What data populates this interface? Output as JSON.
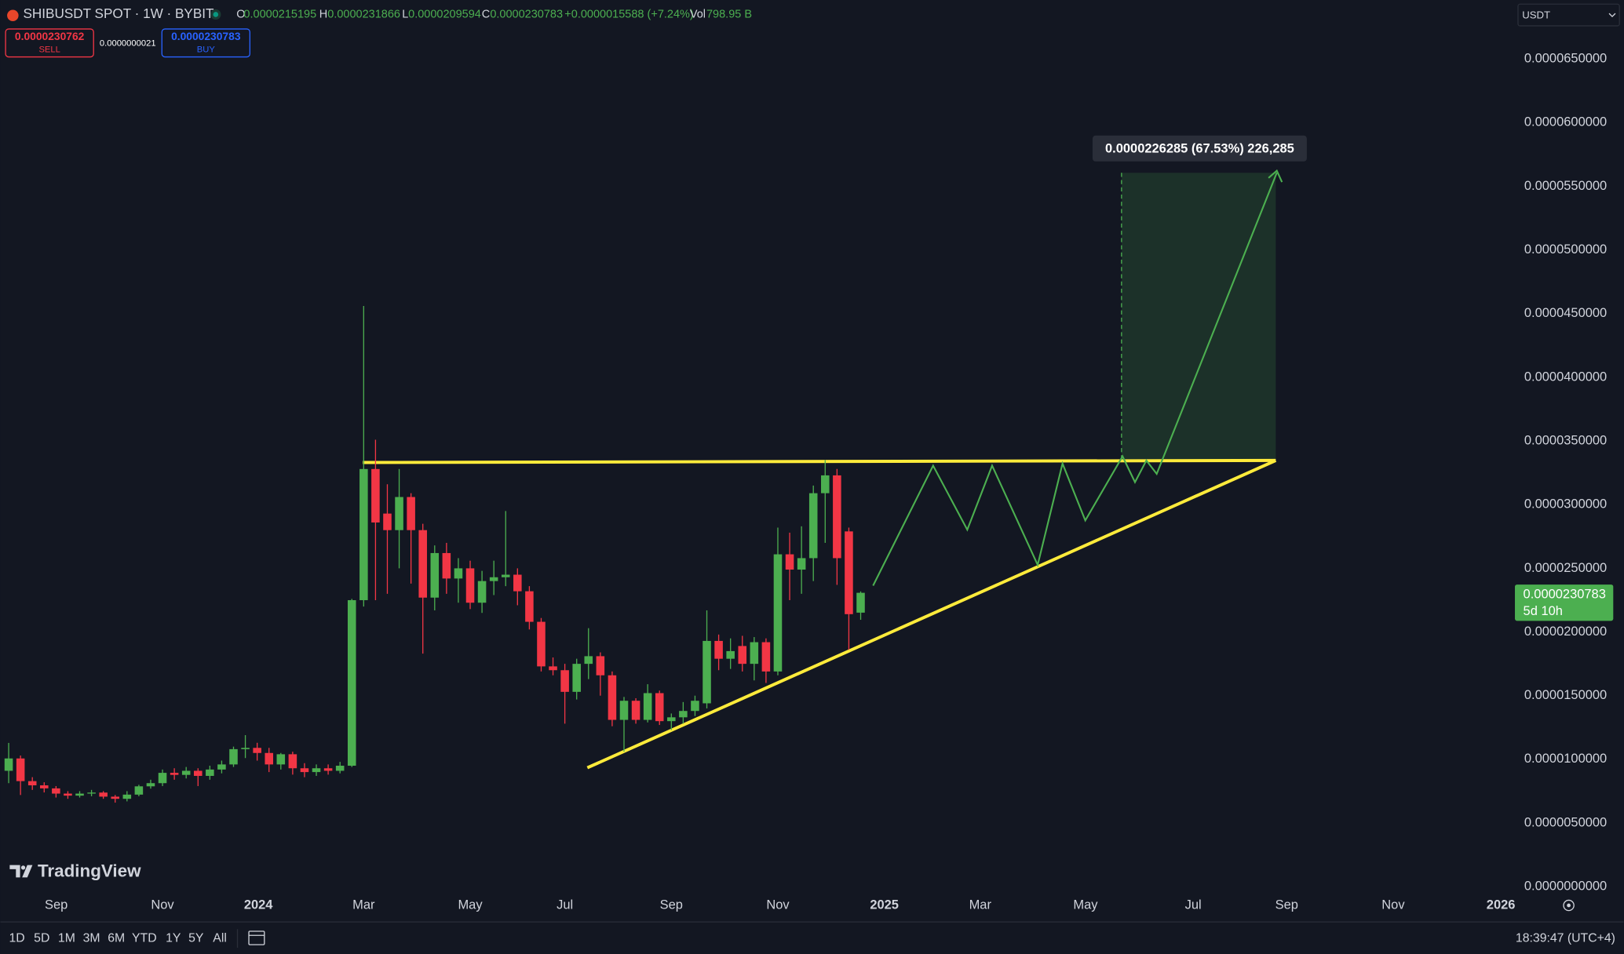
{
  "header": {
    "symbol": "SHIBUSDT SPOT · 1W · BYBIT",
    "o_label": "O",
    "open": "0.0000215195",
    "h_label": "H",
    "high": "0.0000231866",
    "l_label": "L",
    "low": "0.0000209594",
    "c_label": "C",
    "close": "0.0000230783",
    "change": "+0.0000015588 (+7.24%)",
    "vol_label": "Vol",
    "volume": "798.95 B"
  },
  "trade": {
    "sell_price": "0.0000230762",
    "sell": "SELL",
    "spread": "0.0000000021",
    "buy_price": "0.0000230783",
    "buy": "BUY"
  },
  "currency": "USDT",
  "chart_data": {
    "type": "candlestick",
    "categories": [
      null,
      null,
      null,
      null,
      null,
      null,
      null,
      null,
      null,
      null,
      null,
      null,
      null,
      null,
      null,
      null,
      null,
      null,
      null,
      null,
      null,
      null,
      null,
      null,
      null,
      null,
      null,
      null,
      null,
      null,
      null,
      null,
      null,
      null,
      null,
      null,
      null,
      null,
      null,
      null,
      null,
      null,
      null,
      null,
      null,
      null,
      null,
      null,
      null,
      null,
      null,
      null,
      null,
      null,
      null,
      null,
      null,
      null,
      null,
      null,
      null,
      null,
      null,
      null,
      null,
      null,
      null,
      null,
      null,
      null,
      null,
      null,
      null
    ],
    "open": [
      9.1e-06,
      1.007e-05,
      8.29e-06,
      7.96e-06,
      7.72e-06,
      7.31e-06,
      7.15e-06,
      7.31e-06,
      7.39e-06,
      7.07e-06,
      6.9e-06,
      7.23e-06,
      7.88e-06,
      8.13e-06,
      8.94e-06,
      8.78e-06,
      9.1e-06,
      8.7e-06,
      9.2e-06,
      9.6e-06,
      1.08e-05,
      1.09e-05,
      1.05e-05,
      9.6e-06,
      1.04e-05,
      9.3e-06,
      9e-06,
      9.3e-06,
      9.1e-06,
      9.5e-06,
      2.25e-05,
      3.28e-05,
      2.93e-05,
      2.8e-05,
      3.06e-05,
      2.8e-05,
      2.27e-05,
      2.62e-05,
      2.42e-05,
      2.5e-05,
      2.23e-05,
      2.4e-05,
      2.43e-05,
      2.45e-05,
      2.32e-05,
      2.08e-05,
      1.73e-05,
      1.7e-05,
      1.53e-05,
      1.75e-05,
      1.81e-05,
      1.66e-05,
      1.31e-05,
      1.46e-05,
      1.31e-05,
      1.52e-05,
      1.3e-05,
      1.33e-05,
      1.38e-05,
      1.44e-05,
      1.93e-05,
      1.79e-05,
      1.89e-05,
      1.75e-05,
      1.92e-05,
      1.69e-05,
      2.61e-05,
      2.49e-05,
      2.58e-05,
      3.09e-05,
      3.23e-05,
      2.79e-05,
      2.15195e-05
    ],
    "high": [
      1.129e-05,
      1.03e-05,
      8.6e-06,
      8.2e-06,
      7.9e-06,
      7.5e-06,
      7.5e-06,
      7.6e-06,
      7.5e-06,
      7.2e-06,
      7.5e-06,
      8e-06,
      8.4e-06,
      9.2e-06,
      9.3e-06,
      9.4e-06,
      9.3e-06,
      9.5e-06,
      9.9e-06,
      1.1e-05,
      1.19e-05,
      1.13e-05,
      1.09e-05,
      1.05e-05,
      1.06e-05,
      9.7e-06,
      9.6e-06,
      9.6e-06,
      9.8e-06,
      2.26e-05,
      4.56e-05,
      3.51e-05,
      3.16e-05,
      3.28e-05,
      3.09e-05,
      2.85e-05,
      2.68e-05,
      2.7e-05,
      2.58e-05,
      2.56e-05,
      2.48e-05,
      2.56e-05,
      2.95e-05,
      2.5e-05,
      2.36e-05,
      2.11e-05,
      1.8e-05,
      1.75e-05,
      1.79e-05,
      2.03e-05,
      1.84e-05,
      1.69e-05,
      1.49e-05,
      1.48e-05,
      1.59e-05,
      1.54e-05,
      1.36e-05,
      1.45e-05,
      1.5e-05,
      2.17e-05,
      1.98e-05,
      1.95e-05,
      1.97e-05,
      1.96e-05,
      1.95e-05,
      2.82e-05,
      2.78e-05,
      2.83e-05,
      3.15e-05,
      3.35e-05,
      3.28e-05,
      2.82e-05,
      2.31866e-05
    ],
    "low": [
      8.13e-06,
      7.2e-06,
      7.6e-06,
      7.4e-06,
      7e-06,
      6.9e-06,
      7e-06,
      7.1e-06,
      6.9e-06,
      6.6e-06,
      6.7e-06,
      7.1e-06,
      7.7e-06,
      7.9e-06,
      8.4e-06,
      8.5e-06,
      7.9e-06,
      8.4e-06,
      8.9e-06,
      9.4e-06,
      1.01e-05,
      9.9e-06,
      9e-06,
      9.2e-06,
      8.8e-06,
      8.6e-06,
      8.7e-06,
      8.8e-06,
      8.9e-06,
      9.4e-06,
      2.2e-05,
      2.25e-05,
      2.3e-05,
      2.5e-05,
      2.38e-05,
      1.83e-05,
      2.17e-05,
      2.3e-05,
      2.23e-05,
      2.18e-05,
      2.15e-05,
      2.29e-05,
      2.36e-05,
      2.21e-05,
      2.02e-05,
      1.69e-05,
      1.66e-05,
      1.28e-05,
      1.47e-05,
      1.63e-05,
      1.5e-05,
      1.26e-05,
      1.06e-05,
      1.28e-05,
      1.29e-05,
      1.27e-05,
      1.23e-05,
      1.28e-05,
      1.34e-05,
      1.4e-05,
      1.7e-05,
      1.71e-05,
      1.69e-05,
      1.62e-05,
      1.6e-05,
      1.66e-05,
      2.25e-05,
      2.3e-05,
      2.4e-05,
      2.7e-05,
      2.37e-05,
      1.86e-05,
      2.09594e-05
    ],
    "close": [
      1.007e-05,
      8.29e-06,
      7.96e-06,
      7.72e-06,
      7.31e-06,
      7.15e-06,
      7.31e-06,
      7.39e-06,
      7.07e-06,
      6.9e-06,
      7.23e-06,
      7.88e-06,
      8.13e-06,
      8.94e-06,
      8.78e-06,
      9.1e-06,
      8.7e-06,
      9.2e-06,
      9.6e-06,
      1.08e-05,
      1.09e-05,
      1.05e-05,
      9.6e-06,
      1.04e-05,
      9.3e-06,
      9e-06,
      9.3e-06,
      9.1e-06,
      9.5e-06,
      2.25e-05,
      3.28e-05,
      2.86e-05,
      2.8e-05,
      3.06e-05,
      2.8e-05,
      2.27e-05,
      2.62e-05,
      2.42e-05,
      2.5e-05,
      2.23e-05,
      2.4e-05,
      2.43e-05,
      2.45e-05,
      2.32e-05,
      2.08e-05,
      1.73e-05,
      1.7e-05,
      1.53e-05,
      1.75e-05,
      1.81e-05,
      1.66e-05,
      1.31e-05,
      1.46e-05,
      1.31e-05,
      1.52e-05,
      1.3e-05,
      1.33e-05,
      1.38e-05,
      1.46e-05,
      1.93e-05,
      1.79e-05,
      1.85e-05,
      1.75e-05,
      1.92e-05,
      1.69e-05,
      2.61e-05,
      2.49e-05,
      2.58e-05,
      3.09e-05,
      3.23e-05,
      2.58e-05,
      2.14e-05,
      2.30783e-05
    ],
    "up_color": "#4caf50",
    "down_color": "#f23645",
    "xlim": [
      -0.7,
      127.2
    ],
    "xticks": [
      {
        "value": 4.02,
        "label": "Sep"
      },
      {
        "value": 13.0,
        "label": "Nov"
      },
      {
        "value": 21.1,
        "label": "2024"
      },
      {
        "value": 30.0,
        "label": "Mar"
      },
      {
        "value": 39.0,
        "label": "May"
      },
      {
        "value": 47.0,
        "label": "Jul"
      },
      {
        "value": 56.0,
        "label": "Sep"
      },
      {
        "value": 65.0,
        "label": "Nov"
      },
      {
        "value": 74.0,
        "label": "2025"
      },
      {
        "value": 82.1,
        "label": "Mar"
      },
      {
        "value": 91.0,
        "label": "May"
      },
      {
        "value": 100.1,
        "label": "Jul"
      },
      {
        "value": 108.0,
        "label": "Sep"
      },
      {
        "value": 117.0,
        "label": "Nov"
      },
      {
        "value": 126.1,
        "label": "2026"
      }
    ],
    "ylim": [
      -3.3e-07,
      6.963e-05
    ],
    "yticks": [
      {
        "value": 0,
        "label": "0.0000000000"
      },
      {
        "value": 5e-06,
        "label": "0.0000050000"
      },
      {
        "value": 1e-05,
        "label": "0.0000100000"
      },
      {
        "value": 1.5e-05,
        "label": "0.0000150000"
      },
      {
        "value": 2e-05,
        "label": "0.0000200000"
      },
      {
        "value": 2.5e-05,
        "label": "0.0000250000"
      },
      {
        "value": 3e-05,
        "label": "0.0000300000"
      },
      {
        "value": 3.5e-05,
        "label": "0.0000350000"
      },
      {
        "value": 4e-05,
        "label": "0.0000400000"
      },
      {
        "value": 4.5e-05,
        "label": "0.0000450000"
      },
      {
        "value": 5e-05,
        "label": "0.0000500000"
      },
      {
        "value": 5.5e-05,
        "label": "0.0000550000"
      },
      {
        "value": 6e-05,
        "label": "0.0000600000"
      },
      {
        "value": 6.5e-05,
        "label": "0.0000650000"
      }
    ],
    "grid": false,
    "annotation": "0.0000226285 (67.53%) 226,285",
    "last_price_label": "0.0000230783",
    "countdown": "5d 10h"
  },
  "brand": "TradingView",
  "footer": {
    "ranges": [
      "1D",
      "5D",
      "1M",
      "3M",
      "6M",
      "YTD",
      "1Y",
      "5Y",
      "All"
    ],
    "time": "18:39:47 (UTC+4)"
  }
}
